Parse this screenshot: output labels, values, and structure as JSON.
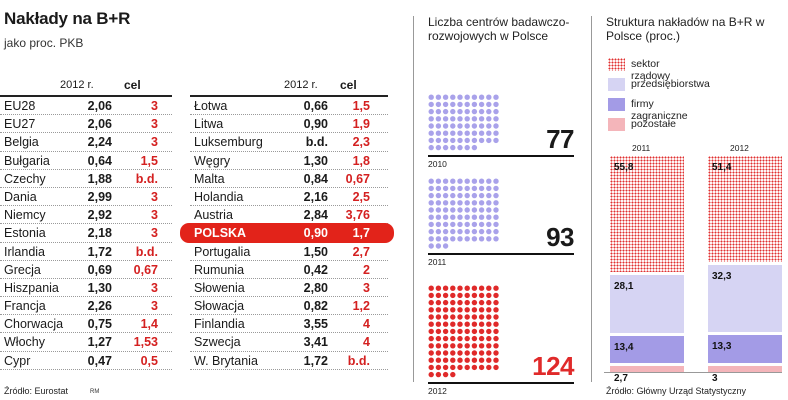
{
  "left_panel": {
    "title": "Nakłady na B+R",
    "subtitle": "jako proc. PKB",
    "col_year": "2012 r.",
    "col_target": "cel",
    "source": "Źródło: Eurostat",
    "author": "RM"
  },
  "middle_panel": {
    "title": "Liczba centrów badawczo-rozwojowych w Polsce"
  },
  "right_panel": {
    "title": "Struktura nakładów na B+R w Polsce (proc.)",
    "source": "Źródło: Główny Urząd Statystyczny"
  },
  "colors": {
    "highlight": "#e2231a",
    "target_text": "#d42020",
    "dots_lavender": "#a9a2ea",
    "dots_red": "#e02a2a",
    "gov": "#e03030",
    "enterprise": "#d6d4f3",
    "foreign": "#a39be6",
    "other": "#f4b5ba"
  },
  "chart_data": [
    {
      "type": "table",
      "title": "Nakłady na B+R",
      "subtitle": "jako proc. PKB",
      "columns": [
        "",
        "2012 r.",
        "cel"
      ],
      "rows_left": [
        {
          "country": "EU28",
          "value": "2,06",
          "target": "3"
        },
        {
          "country": "EU27",
          "value": "2,06",
          "target": "3"
        },
        {
          "country": "Belgia",
          "value": "2,24",
          "target": "3"
        },
        {
          "country": "Bułgaria",
          "value": "0,64",
          "target": "1,5"
        },
        {
          "country": "Czechy",
          "value": "1,88",
          "target": "b.d."
        },
        {
          "country": "Dania",
          "value": "2,99",
          "target": "3"
        },
        {
          "country": "Niemcy",
          "value": "2,92",
          "target": "3"
        },
        {
          "country": "Estonia",
          "value": "2,18",
          "target": "3"
        },
        {
          "country": "Irlandia",
          "value": "1,72",
          "target": "b.d."
        },
        {
          "country": "Grecja",
          "value": "0,69",
          "target": "0,67"
        },
        {
          "country": "Hiszpania",
          "value": "1,30",
          "target": "3"
        },
        {
          "country": "Francja",
          "value": "2,26",
          "target": "3"
        },
        {
          "country": "Chorwacja",
          "value": "0,75",
          "target": "1,4"
        },
        {
          "country": "Włochy",
          "value": "1,27",
          "target": "1,53"
        },
        {
          "country": "Cypr",
          "value": "0,47",
          "target": "0,5"
        }
      ],
      "rows_right": [
        {
          "country": "Łotwa",
          "value": "0,66",
          "target": "1,5"
        },
        {
          "country": "Litwa",
          "value": "0,90",
          "target": "1,9"
        },
        {
          "country": "Luksemburg",
          "value": "b.d.",
          "target": "2,3"
        },
        {
          "country": "Węgry",
          "value": "1,30",
          "target": "1,8"
        },
        {
          "country": "Malta",
          "value": "0,84",
          "target": "0,67"
        },
        {
          "country": "Holandia",
          "value": "2,16",
          "target": "2,5"
        },
        {
          "country": "Austria",
          "value": "2,84",
          "target": "3,76"
        },
        {
          "country": "POLSKA",
          "value": "0,90",
          "target": "1,7",
          "highlight": true
        },
        {
          "country": "Portugalia",
          "value": "1,50",
          "target": "2,7"
        },
        {
          "country": "Rumunia",
          "value": "0,42",
          "target": "2"
        },
        {
          "country": "Słowenia",
          "value": "2,80",
          "target": "3"
        },
        {
          "country": "Słowacja",
          "value": "0,82",
          "target": "1,2"
        },
        {
          "country": "Finlandia",
          "value": "3,55",
          "target": "4"
        },
        {
          "country": "Szwecja",
          "value": "3,41",
          "target": "4"
        },
        {
          "country": "W. Brytania",
          "value": "1,72",
          "target": "b.d."
        }
      ]
    },
    {
      "type": "bar",
      "subtype": "dot-count",
      "title": "Liczba centrów badawczo-rozwojowych w Polsce",
      "categories": [
        "2010",
        "2011",
        "2012"
      ],
      "values": [
        77,
        93,
        124
      ],
      "value_labels": [
        "77",
        "93",
        "124"
      ]
    },
    {
      "type": "bar",
      "subtype": "stacked-100",
      "title": "Struktura nakładów na B+R w Polsce (proc.)",
      "categories": [
        "2011",
        "2012"
      ],
      "series": [
        {
          "name": "sektor rządowy",
          "values": [
            55.8,
            51.4
          ],
          "labels": [
            "55,8",
            "51,4"
          ],
          "key": "gov"
        },
        {
          "name": "przedsiębiorstwa",
          "values": [
            28.1,
            32.3
          ],
          "labels": [
            "28,1",
            "32,3"
          ],
          "key": "ent"
        },
        {
          "name": "firmy zagraniczne",
          "values": [
            13.4,
            13.3
          ],
          "labels": [
            "13,4",
            "13,3"
          ],
          "key": "for"
        },
        {
          "name": "pozostałe",
          "values": [
            2.7,
            3.0
          ],
          "labels": [
            "2,7",
            "3"
          ],
          "key": "oth"
        }
      ],
      "legend": "top"
    }
  ]
}
